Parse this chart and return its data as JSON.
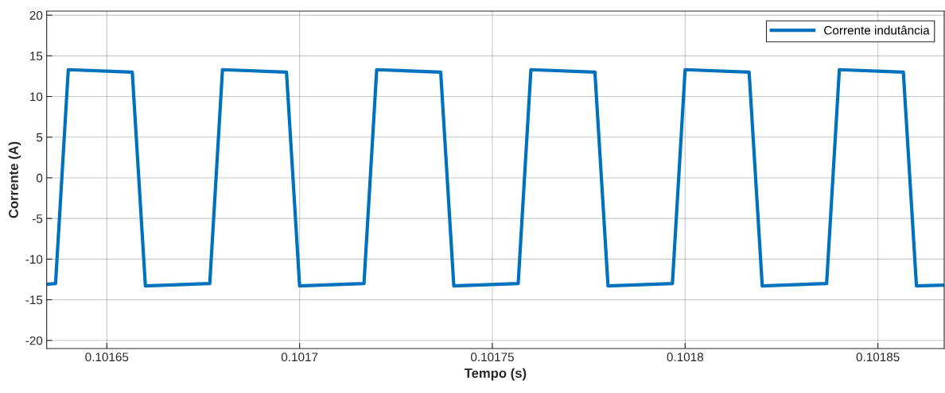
{
  "chart_data": {
    "type": "line",
    "xlabel": "Tempo (s)",
    "ylabel": "Corrente (A)",
    "x": [
      0.1016344,
      0.1016367,
      0.10164,
      0.1016566,
      0.10166,
      0.1016767,
      0.10168,
      0.1016966,
      0.1017,
      0.1017167,
      0.10172,
      0.1017366,
      0.10174,
      0.1017567,
      0.10176,
      0.1017766,
      0.10178,
      0.1017967,
      0.1018,
      0.1018166,
      0.10182,
      0.1018367,
      0.10184,
      0.1018566,
      0.10186,
      0.1018672
    ],
    "series": [
      {
        "name": "Corrente indutância",
        "color": "#0072bd",
        "values": [
          -13.1,
          -13.0,
          13.3,
          13.0,
          -13.3,
          -13.0,
          13.3,
          13.0,
          -13.3,
          -13.0,
          13.3,
          13.0,
          -13.3,
          -13.0,
          13.3,
          13.0,
          -13.3,
          -13.0,
          13.3,
          13.0,
          -13.3,
          -13.0,
          13.3,
          13.0,
          -13.3,
          -13.2
        ]
      }
    ],
    "xlim": [
      0.1016344,
      0.1018672
    ],
    "ylim": [
      -21,
      20.5
    ],
    "xticks": [
      0.10165,
      0.1017,
      0.10175,
      0.1018,
      0.10185
    ],
    "yticks": [
      -20,
      -15,
      -10,
      -5,
      0,
      5,
      10,
      15,
      20
    ],
    "grid": true,
    "legend": "top right",
    "marker": "none",
    "line_style": "solid"
  }
}
